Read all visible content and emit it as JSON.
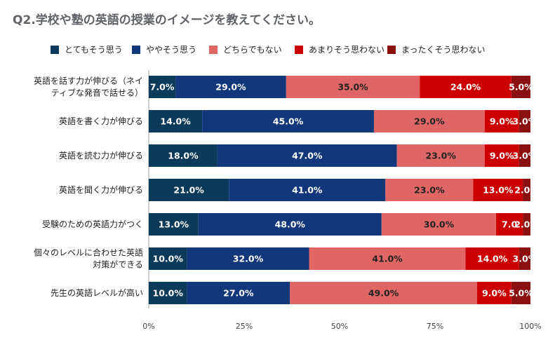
{
  "chart_data": {
    "type": "bar",
    "orientation": "horizontal",
    "stacked": true,
    "title": "Q2.学校や塾の英語の授業のイメージを教えてください。",
    "xlabel": "",
    "ylabel": "",
    "xlim": [
      0,
      100
    ],
    "x_ticks": [
      "0%",
      "25%",
      "50%",
      "75%",
      "100%"
    ],
    "legend_position": "top",
    "categories": [
      "英語を話す力が伸びる（ネイティブな発音で話せる）",
      "英語を書く力が伸びる",
      "英語を読む力が伸びる",
      "英語を聞く力が伸びる",
      "受験のための英語力がつく",
      "個々のレベルに合わせた英語対策ができる",
      "先生の英語レベルが高い"
    ],
    "category_lines": [
      [
        "英語を話す力が伸びる（ネイ",
        "ティブな発音で話せる）"
      ],
      [
        "英語を書く力が伸びる"
      ],
      [
        "英語を読む力が伸びる"
      ],
      [
        "英語を聞く力が伸びる"
      ],
      [
        "受験のための英語力がつく"
      ],
      [
        "個々のレベルに合わせた英語",
        "対策ができる"
      ],
      [
        "先生の英語レベルが高い"
      ]
    ],
    "series": [
      {
        "name": "とてもそう思う",
        "color": "#0b3a5a",
        "label_color": "#ffffff",
        "values": [
          7,
          14,
          18,
          21,
          13,
          10,
          10
        ],
        "labels": [
          "7.0%",
          "14.0%",
          "18.0%",
          "21.0%",
          "13.0%",
          "10.0%",
          "10.0%"
        ]
      },
      {
        "name": "ややそう思う",
        "color": "#13377b",
        "label_color": "#ffffff",
        "values": [
          29,
          45,
          47,
          41,
          48,
          32,
          27
        ],
        "labels": [
          "29.0%",
          "45.0%",
          "47.0%",
          "41.0%",
          "48.0%",
          "32.0%",
          "27.0%"
        ]
      },
      {
        "name": "どちらでもない",
        "color": "#e06666",
        "label_color": "#222222",
        "values": [
          35,
          29,
          23,
          23,
          30,
          41,
          49
        ],
        "labels": [
          "35.0%",
          "29.0%",
          "23.0%",
          "23.0%",
          "30.0%",
          "41.0%",
          "49.0%"
        ]
      },
      {
        "name": "あまりそう思わない",
        "color": "#cc0000",
        "label_color": "#ffffff",
        "values": [
          24,
          9,
          9,
          13,
          7,
          14,
          9
        ],
        "labels": [
          "24.0%",
          "9.0%",
          "9.0%",
          "13.0%",
          "7.0",
          "14.0%",
          "9.0%"
        ]
      },
      {
        "name": "まったくそう思わない",
        "color": "#8b1010",
        "label_color": "#ffffff",
        "values": [
          5,
          3,
          3,
          2,
          2,
          3,
          5
        ],
        "labels": [
          "5.0%",
          "3.0%",
          "3.0%",
          "2.0%",
          "2.0%",
          "3.0%",
          "5.0%"
        ]
      }
    ]
  }
}
